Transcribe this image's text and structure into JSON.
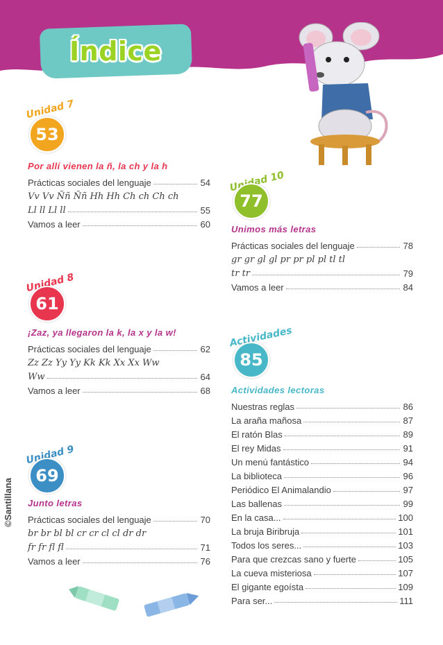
{
  "page": {
    "title": "Índice",
    "copyright": "©Santillana"
  },
  "colors": {
    "header": "#b5338b",
    "tab": "#6ec8c4",
    "title": "#9bd224",
    "unit7": "#f2a51e",
    "unit8": "#e8364f",
    "unit9": "#3c8fc4",
    "unit10": "#8fbf2a",
    "activities": "#48b8c8"
  },
  "units": [
    {
      "label": "Unidad 7",
      "number": "53",
      "heading": "Por allí vienen la ñ, la ch y la h",
      "lines": [
        {
          "text": "Prácticas sociales del lenguaje",
          "page": "54"
        },
        {
          "text": "Vv Vv Ññ Ññ Hh Hh Ch ch Ch ch",
          "page": ""
        },
        {
          "text": "Ll ll Ll ll",
          "page": "55"
        },
        {
          "text": "Vamos a leer",
          "page": "60"
        }
      ]
    },
    {
      "label": "Unidad 8",
      "number": "61",
      "heading": "¡Zaz, ya llegaron la k, la x y la w!",
      "lines": [
        {
          "text": "Prácticas sociales del lenguaje",
          "page": "62"
        },
        {
          "text": "Zz Zz Yy Yy Kk Kk Xx Xx Ww",
          "page": ""
        },
        {
          "text": "Ww",
          "page": "64"
        },
        {
          "text": "Vamos a leer",
          "page": "68"
        }
      ]
    },
    {
      "label": "Unidad 9",
      "number": "69",
      "heading": "Junto letras",
      "lines": [
        {
          "text": "Prácticas sociales del lenguaje",
          "page": "70"
        },
        {
          "text": "br br bl bl cr cr cl cl dr dr",
          "page": ""
        },
        {
          "text": "fr fr fl fl",
          "page": "71"
        },
        {
          "text": "Vamos a leer",
          "page": "76"
        }
      ]
    },
    {
      "label": "Unidad 10",
      "number": "77",
      "heading": "Unimos más letras",
      "lines": [
        {
          "text": "Prácticas sociales del lenguaje",
          "page": "78"
        },
        {
          "text": "gr gr gl gl pr pr pl pl tl tl",
          "page": ""
        },
        {
          "text": "tr tr",
          "page": "79"
        },
        {
          "text": "Vamos a leer",
          "page": "84"
        }
      ]
    }
  ],
  "activities": {
    "label": "Actividades",
    "number": "85",
    "heading": "Actividades lectoras",
    "lines": [
      {
        "text": "Nuestras reglas",
        "page": "86"
      },
      {
        "text": "La araña mañosa",
        "page": "87"
      },
      {
        "text": "El ratón Blas",
        "page": "89"
      },
      {
        "text": "El rey Midas",
        "page": "91"
      },
      {
        "text": "Un menú fantástico",
        "page": "94"
      },
      {
        "text": "La biblioteca",
        "page": "96"
      },
      {
        "text": "Periódico El Animalandio",
        "page": "97"
      },
      {
        "text": "Las ballenas",
        "page": "99"
      },
      {
        "text": "En la casa...",
        "page": "100"
      },
      {
        "text": "La bruja Biribruja",
        "page": "101"
      },
      {
        "text": "Todos los seres...",
        "page": "103"
      },
      {
        "text": "Para que crezcas sano y fuerte",
        "page": "105"
      },
      {
        "text": "La cueva misteriosa",
        "page": "107"
      },
      {
        "text": "El gigante egoísta",
        "page": "109"
      },
      {
        "text": "Para ser...",
        "page": "111"
      }
    ]
  }
}
